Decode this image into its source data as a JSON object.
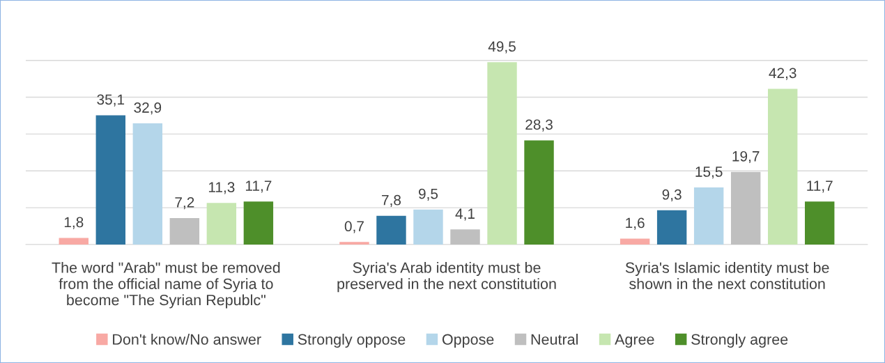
{
  "chart_data": {
    "type": "bar",
    "categories": [
      "The word \"Arab\" must be removed\nfrom the official name of Syria to\nbecome \"The Syrian Republc\"",
      "Syria's Arab identity must be\npreserved in the next constitution",
      "Syria's Islamic identity must be\nshown in the next constitution"
    ],
    "series": [
      {
        "name": "Don't know/No answer",
        "color": "#f8a9a4",
        "values": [
          1.8,
          0.7,
          1.6
        ],
        "value_labels": [
          "1,8",
          "0,7",
          "1,6"
        ]
      },
      {
        "name": "Strongly oppose",
        "color": "#2e75a0",
        "values": [
          35.1,
          7.8,
          9.3
        ],
        "value_labels": [
          "35,1",
          "7,8",
          "9,3"
        ]
      },
      {
        "name": "Oppose",
        "color": "#b4d6ea",
        "values": [
          32.9,
          9.5,
          15.5
        ],
        "value_labels": [
          "32,9",
          "9,5",
          "15,5"
        ]
      },
      {
        "name": "Neutral",
        "color": "#bfbfbf",
        "values": [
          7.2,
          4.1,
          19.7
        ],
        "value_labels": [
          "7,2",
          "4,1",
          "19,7"
        ]
      },
      {
        "name": "Agree",
        "color": "#c6e6b0",
        "values": [
          11.3,
          49.5,
          42.3
        ],
        "value_labels": [
          "11,3",
          "49,5",
          "42,3"
        ]
      },
      {
        "name": "Strongly agree",
        "color": "#4e8f2a",
        "values": [
          11.7,
          28.3,
          11.7
        ],
        "value_labels": [
          "11,7",
          "28,3",
          "11,7"
        ]
      }
    ],
    "tick_labels": "x",
    "grid": "y",
    "legend": "bottom"
  }
}
